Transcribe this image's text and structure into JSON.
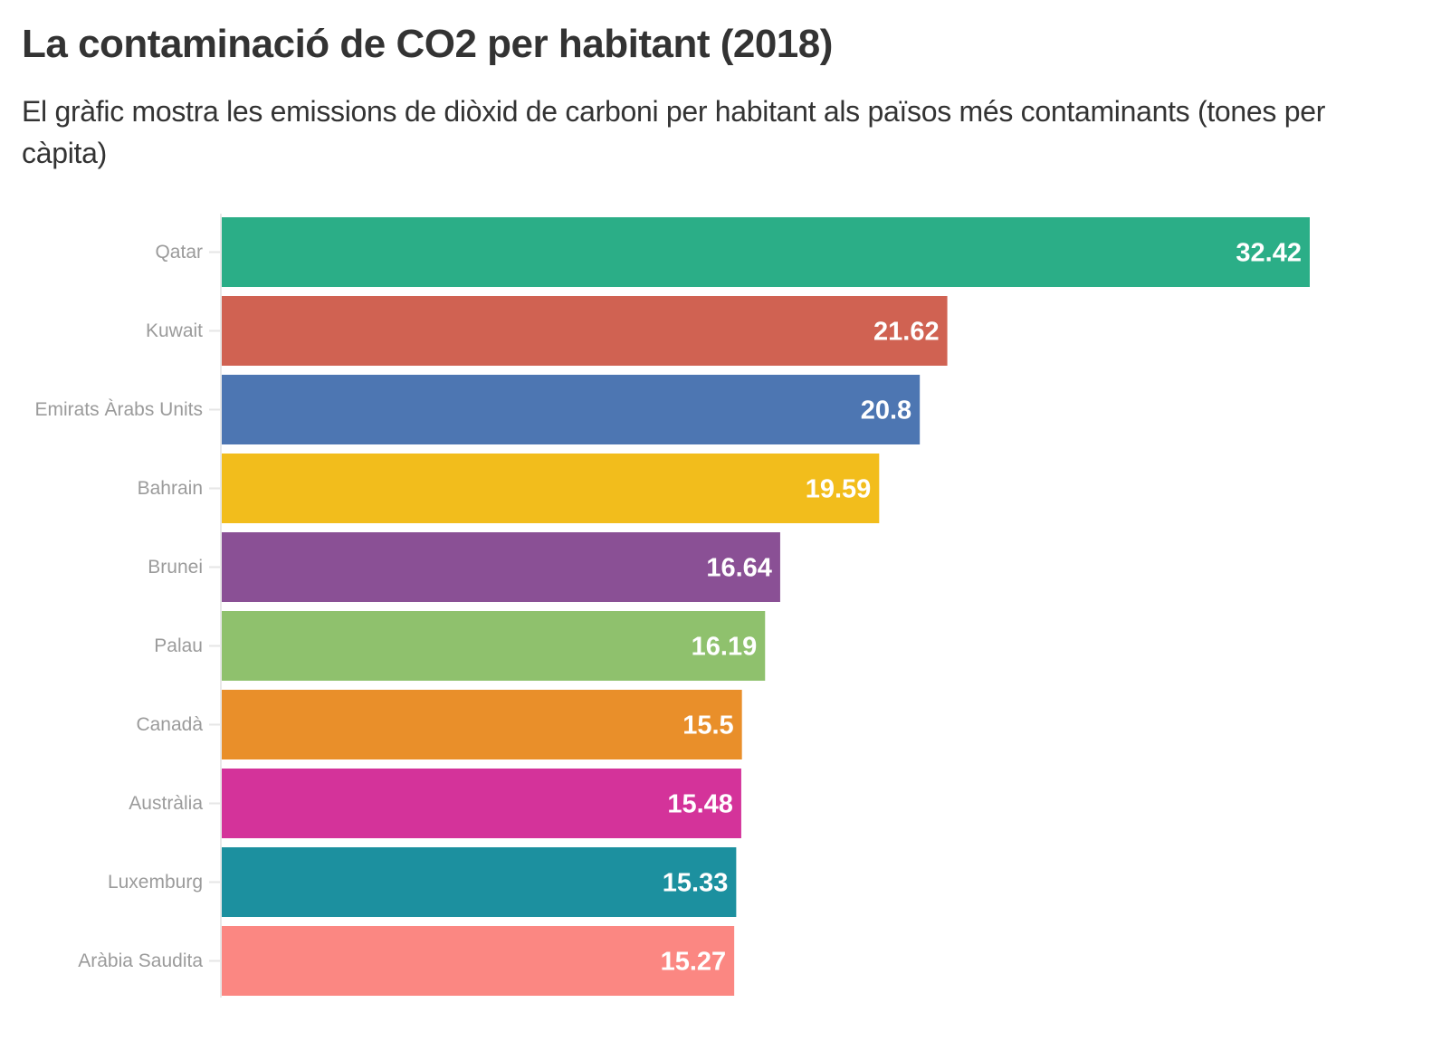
{
  "header": {
    "title": "La contaminació de CO2 per habitant (2018)",
    "subtitle": "El gràfic mostra les emissions de diòxid de carboni per habitant als països més contaminants (tones per càpita)"
  },
  "chart_data": {
    "type": "bar",
    "orientation": "horizontal",
    "title": "La contaminació de CO2 per habitant (2018)",
    "subtitle": "El gràfic mostra les emissions de diòxid de carboni per habitant als països més contaminants (tones per càpita)",
    "xlabel": "",
    "ylabel": "",
    "grid": false,
    "legend": "none",
    "xlim": [
      0,
      32.42
    ],
    "categories": [
      "Qatar",
      "Kuwait",
      "Emirats Àrabs Units",
      "Bahrain",
      "Brunei",
      "Palau",
      "Canadà",
      "Austràlia",
      "Luxemburg",
      "Aràbia Saudita"
    ],
    "values": [
      32.42,
      21.62,
      20.8,
      19.59,
      16.64,
      16.19,
      15.5,
      15.48,
      15.33,
      15.27
    ],
    "value_labels": [
      "32.42",
      "21.62",
      "20.8",
      "19.59",
      "16.64",
      "16.19",
      "15.5",
      "15.48",
      "15.33",
      "15.27"
    ],
    "colors": [
      "#2bae87",
      "#d06252",
      "#4d76b2",
      "#f2bd1c",
      "#8a5095",
      "#8fc16d",
      "#e98f2a",
      "#d4339a",
      "#1c909f",
      "#fb8782"
    ]
  }
}
